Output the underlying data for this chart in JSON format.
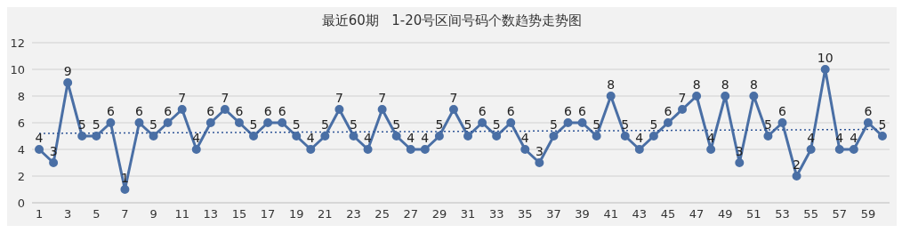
{
  "chart_data": {
    "type": "line",
    "title": "最近60期   1-20号区间号码个数趋势走势图",
    "x": [
      1,
      2,
      3,
      4,
      5,
      6,
      7,
      8,
      9,
      10,
      11,
      12,
      13,
      14,
      15,
      16,
      17,
      18,
      19,
      20,
      21,
      22,
      23,
      24,
      25,
      26,
      27,
      28,
      29,
      30,
      31,
      32,
      33,
      34,
      35,
      36,
      37,
      38,
      39,
      40,
      41,
      42,
      43,
      44,
      45,
      46,
      47,
      48,
      49,
      50,
      51,
      52,
      53,
      54,
      55,
      56,
      57,
      58,
      59,
      60
    ],
    "xlim": [
      0.5,
      60.5
    ],
    "xticks": [
      1,
      3,
      5,
      7,
      9,
      11,
      13,
      15,
      17,
      19,
      21,
      23,
      25,
      27,
      29,
      31,
      33,
      35,
      37,
      39,
      41,
      43,
      45,
      47,
      49,
      51,
      53,
      55,
      57,
      59
    ],
    "ylim": [
      0,
      12
    ],
    "yticks": [
      0,
      2,
      4,
      6,
      8,
      10,
      12
    ],
    "grid": "y",
    "marker": "circle",
    "line_style": "solid",
    "data_labels": true,
    "series": [
      {
        "color": "#4a6fa5",
        "values": [
          4,
          3,
          9,
          5,
          5,
          6,
          1,
          6,
          5,
          6,
          7,
          4,
          6,
          7,
          6,
          5,
          6,
          6,
          5,
          4,
          5,
          7,
          5,
          4,
          7,
          5,
          4,
          4,
          5,
          7,
          5,
          6,
          5,
          6,
          4,
          3,
          5,
          6,
          6,
          5,
          8,
          5,
          4,
          5,
          6,
          7,
          8,
          4,
          8,
          3,
          8,
          5,
          6,
          2,
          4,
          10,
          4,
          4,
          6,
          5
        ]
      },
      {
        "type": "line",
        "x": [
          1,
          60
        ],
        "values": [
          5.2,
          5.5
        ],
        "value_labels": [
          null,
          null
        ],
        "color": "#2f5597",
        "line_style": "dotted",
        "marker": "none"
      }
    ]
  }
}
